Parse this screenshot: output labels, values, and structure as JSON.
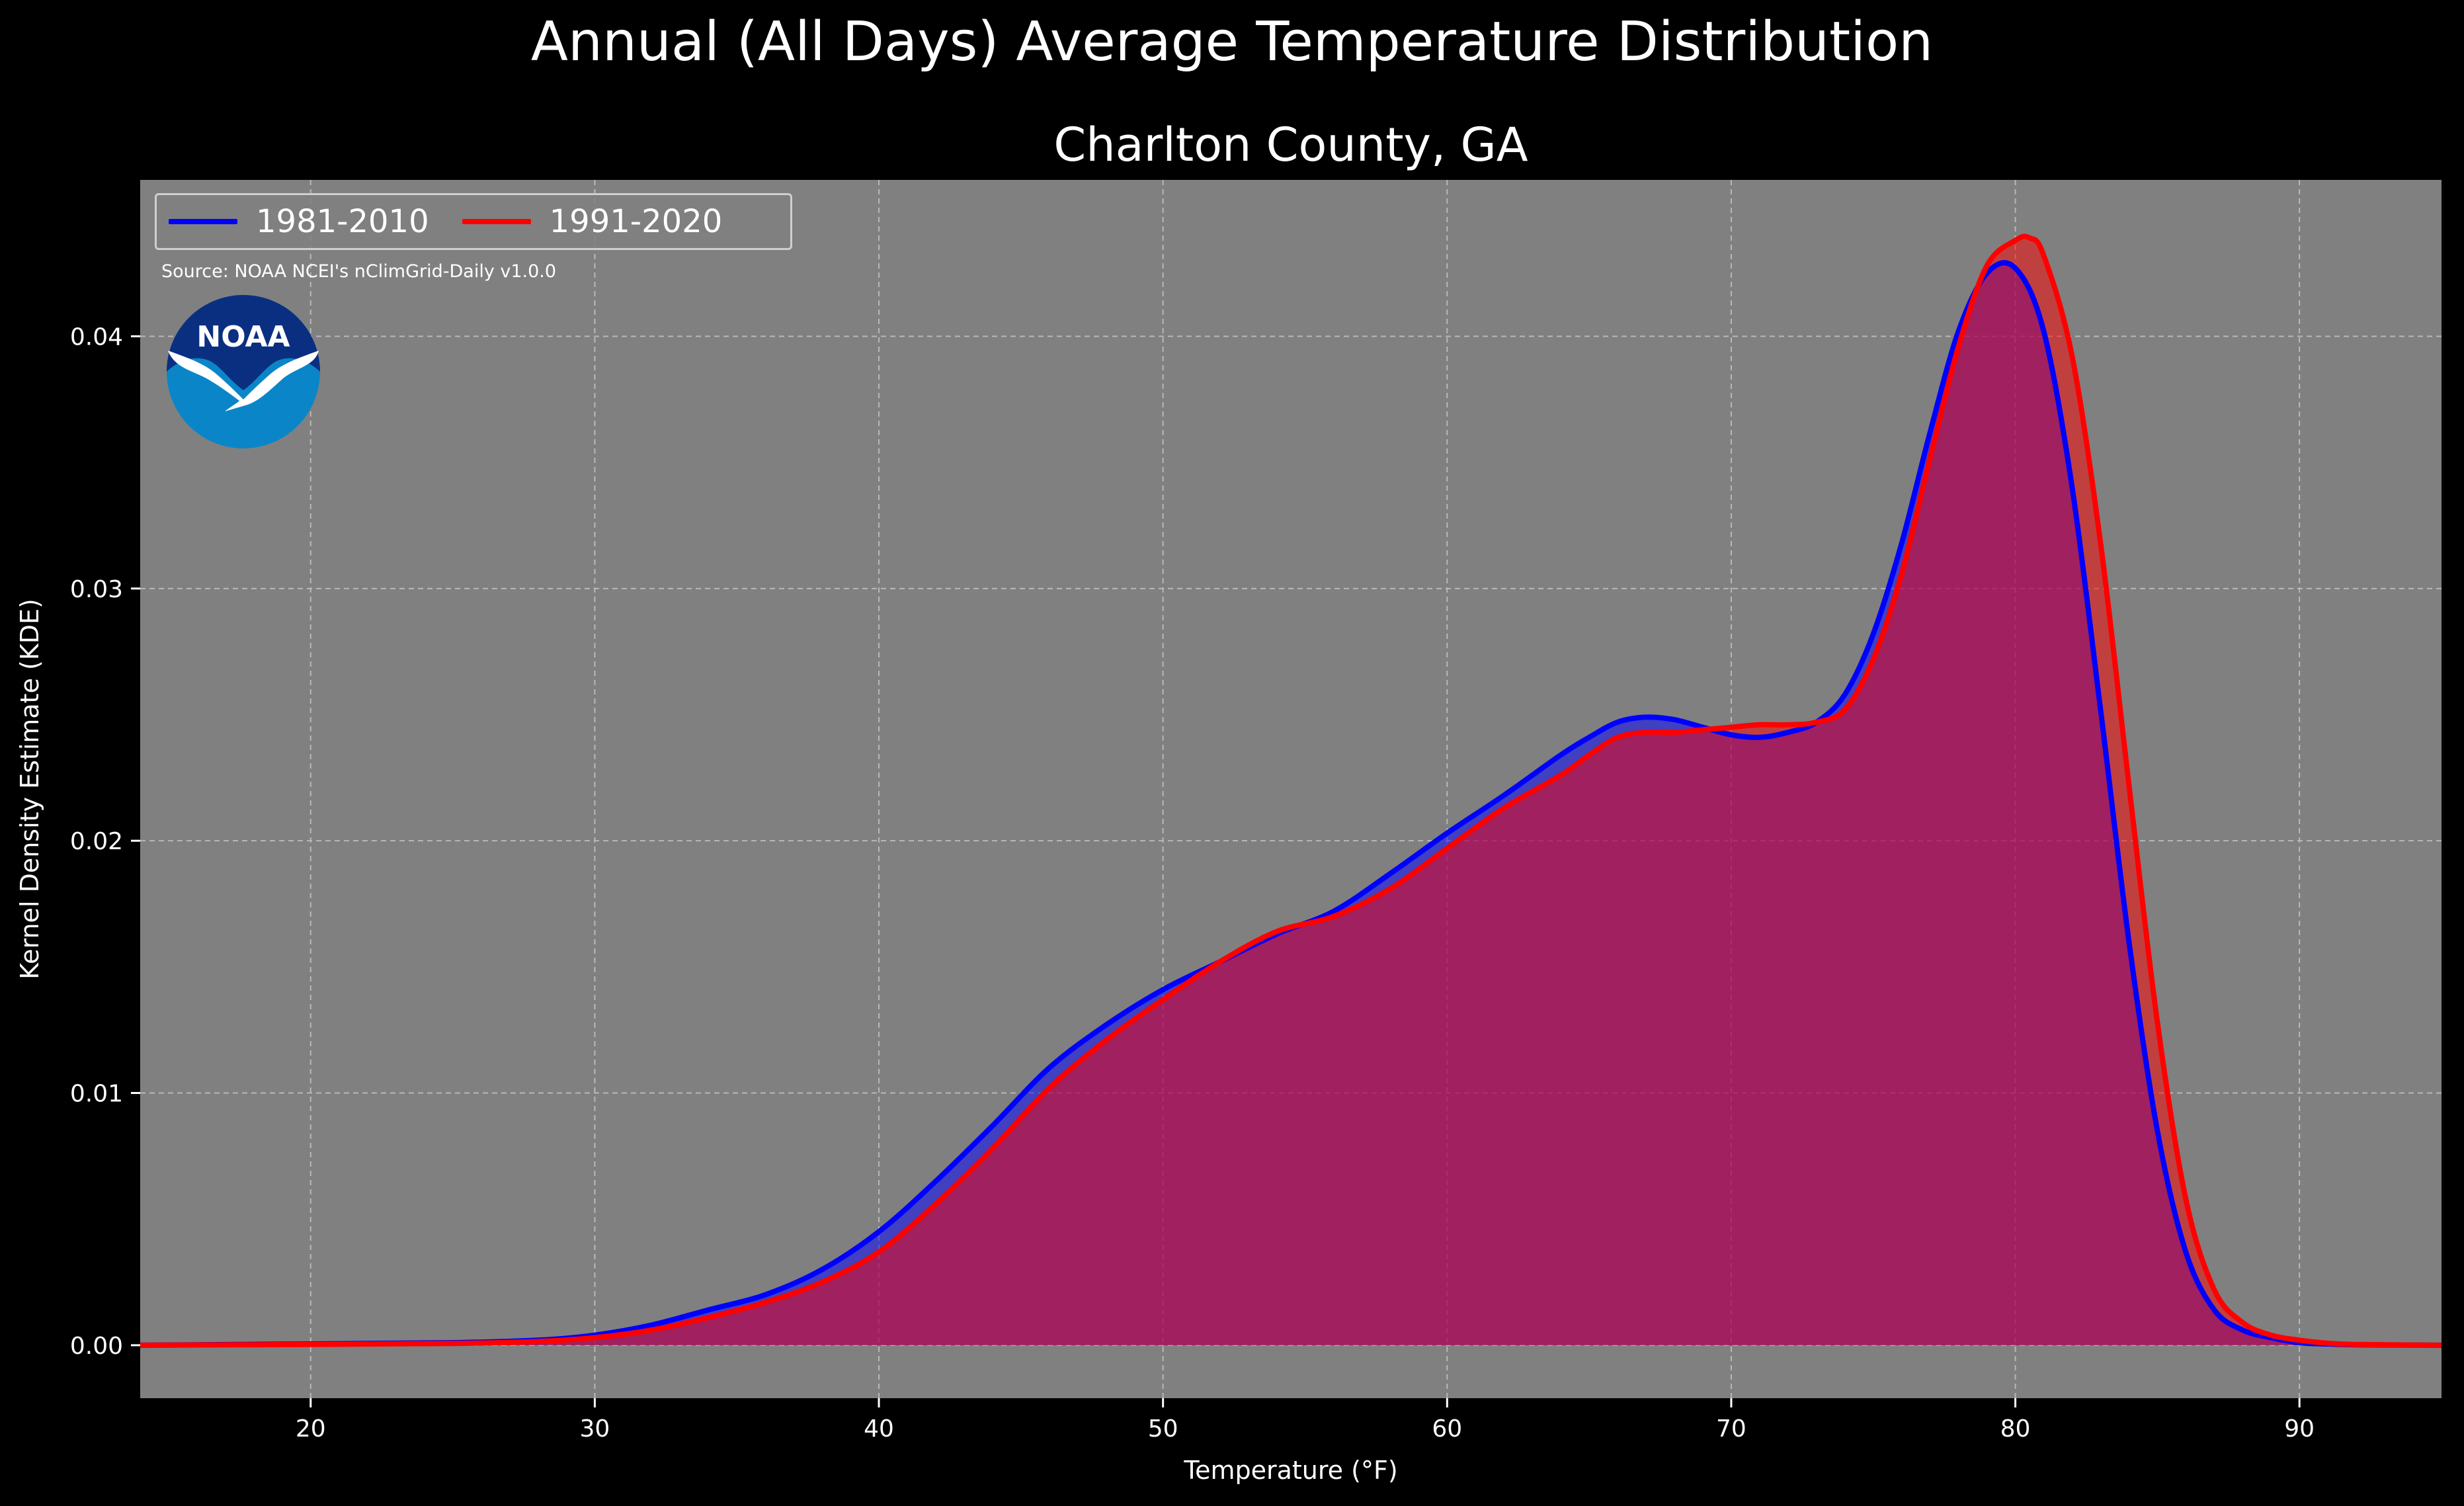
{
  "figure": {
    "suptitle": "Annual (All Days) Average Temperature Distribution",
    "subtitle": "Charlton County, GA",
    "source_note": "Source: NOAA NCEI's nClimGrid-Daily v1.0.0",
    "logo_text": "NOAA"
  },
  "chart_data": {
    "type": "area",
    "title": "Charlton County, GA",
    "xlabel": "Temperature (°F)",
    "ylabel": "Kernel Density Estimate (KDE)",
    "xlim": [
      14,
      95
    ],
    "ylim": [
      -0.0021,
      0.0462
    ],
    "xticks": [
      20,
      30,
      40,
      50,
      60,
      70,
      80,
      90
    ],
    "xtick_labels": [
      "20",
      "30",
      "40",
      "50",
      "60",
      "70",
      "80",
      "90"
    ],
    "yticks": [
      0.0,
      0.01,
      0.02,
      0.03,
      0.04
    ],
    "ytick_labels": [
      "0.00",
      "0.01",
      "0.02",
      "0.03",
      "0.04"
    ],
    "grid": true,
    "legend_placement": "top-left",
    "background_color": "#808080",
    "series": [
      {
        "name": "1981-2010",
        "color": "#0000ff",
        "x": [
          14,
          20,
          25,
          28,
          30,
          32,
          34,
          36,
          38,
          40,
          42,
          44,
          46,
          48,
          50,
          52,
          54,
          56,
          58,
          60,
          62,
          64,
          65,
          66,
          67,
          68,
          69,
          70,
          71,
          72,
          73,
          74,
          75,
          76,
          77,
          78,
          79,
          80,
          81,
          82,
          83,
          84,
          85,
          86,
          87,
          88,
          89,
          90,
          91,
          92,
          95
        ],
        "values": [
          0.0,
          5e-05,
          0.0001,
          0.0002,
          0.0004,
          0.0008,
          0.0014,
          0.002,
          0.003,
          0.0045,
          0.0065,
          0.0087,
          0.011,
          0.0127,
          0.0141,
          0.0152,
          0.0163,
          0.0172,
          0.0187,
          0.0203,
          0.0218,
          0.0234,
          0.0241,
          0.0247,
          0.0249,
          0.0248,
          0.0245,
          0.0242,
          0.0241,
          0.0243,
          0.0247,
          0.0258,
          0.0282,
          0.0318,
          0.0362,
          0.0402,
          0.0425,
          0.0427,
          0.0402,
          0.034,
          0.0252,
          0.016,
          0.0085,
          0.0037,
          0.0014,
          0.0006,
          0.0003,
          0.0001,
          5e-05,
          2e-05,
          0.0
        ]
      },
      {
        "name": "1991-2020",
        "color": "#ff0000",
        "x": [
          14,
          20,
          25,
          28,
          30,
          32,
          34,
          36,
          38,
          40,
          42,
          44,
          46,
          48,
          50,
          52,
          54,
          56,
          58,
          60,
          62,
          64,
          65,
          66,
          67,
          68,
          69,
          70,
          71,
          72,
          73,
          74,
          75,
          76,
          77,
          78,
          79,
          80,
          80.5,
          81,
          82,
          83,
          84,
          85,
          86,
          87,
          88,
          89,
          90,
          91,
          92,
          95
        ],
        "values": [
          0.0,
          3e-05,
          7e-05,
          0.00015,
          0.0003,
          0.0006,
          0.0011,
          0.0017,
          0.0025,
          0.0037,
          0.0056,
          0.0078,
          0.0102,
          0.0121,
          0.0137,
          0.0152,
          0.0164,
          0.017,
          0.0181,
          0.0197,
          0.0213,
          0.0226,
          0.0234,
          0.0241,
          0.0243,
          0.0243,
          0.0244,
          0.0245,
          0.0246,
          0.0246,
          0.0247,
          0.0252,
          0.0272,
          0.0306,
          0.0352,
          0.0396,
          0.0428,
          0.0438,
          0.0439,
          0.0432,
          0.0392,
          0.0318,
          0.0222,
          0.0128,
          0.0058,
          0.0022,
          0.0009,
          0.0004,
          0.0002,
          8e-05,
          3e-05,
          0.0
        ]
      }
    ]
  }
}
